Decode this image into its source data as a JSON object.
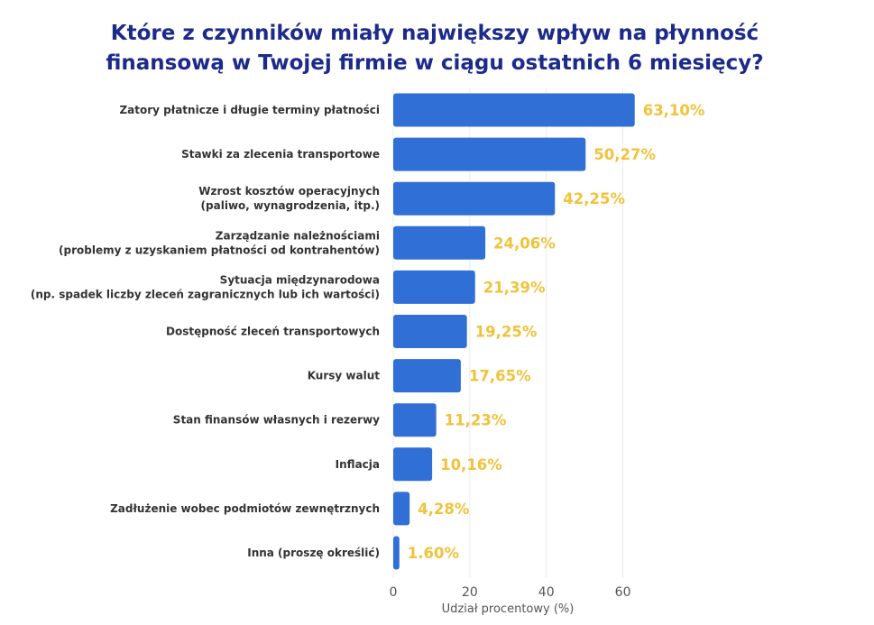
{
  "chart_data": {
    "type": "bar",
    "orientation": "horizontal",
    "title_lines": [
      "Które z czynników miały największy wpływ na płynność",
      "finansową w Twojej firmie w ciągu ostatnich 6 miesięcy?"
    ],
    "xlabel": "Udział procentowy (%)",
    "ylabel": "",
    "xlim": [
      0,
      70
    ],
    "xticks": [
      0,
      20,
      40,
      60
    ],
    "grid": true,
    "bar_color": "#2f6fd6",
    "label_color": "#f2c23b",
    "title_color": "#1c2a8a",
    "categories": [
      [
        "Zatory płatnicze i długie terminy płatności"
      ],
      [
        "Stawki za zlecenia transportowe"
      ],
      [
        "Wzrost kosztów operacyjnych",
        "(paliwo, wynagrodzenia, itp.)"
      ],
      [
        "Zarządzanie należnościami",
        "(problemy z uzyskaniem płatności od kontrahentów)"
      ],
      [
        "Sytuacja międzynarodowa",
        "(np. spadek liczby zleceń zagranicznych lub ich wartości)"
      ],
      [
        "Dostępność zleceń transportowych"
      ],
      [
        "Kursy walut"
      ],
      [
        "Stan finansów własnych i rezerwy"
      ],
      [
        "Inflacja"
      ],
      [
        "Zadłużenie wobec podmiotów zewnętrznych"
      ],
      [
        "Inna (proszę określić)"
      ]
    ],
    "values": [
      63.1,
      50.27,
      42.25,
      24.06,
      21.39,
      19.25,
      17.65,
      11.23,
      10.16,
      4.28,
      1.6
    ],
    "value_labels": [
      "63,10%",
      "50,27%",
      "42,25%",
      "24,06%",
      "21,39%",
      "19,25%",
      "17,65%",
      "11,23%",
      "10,16%",
      "4,28%",
      "1.60%"
    ]
  }
}
